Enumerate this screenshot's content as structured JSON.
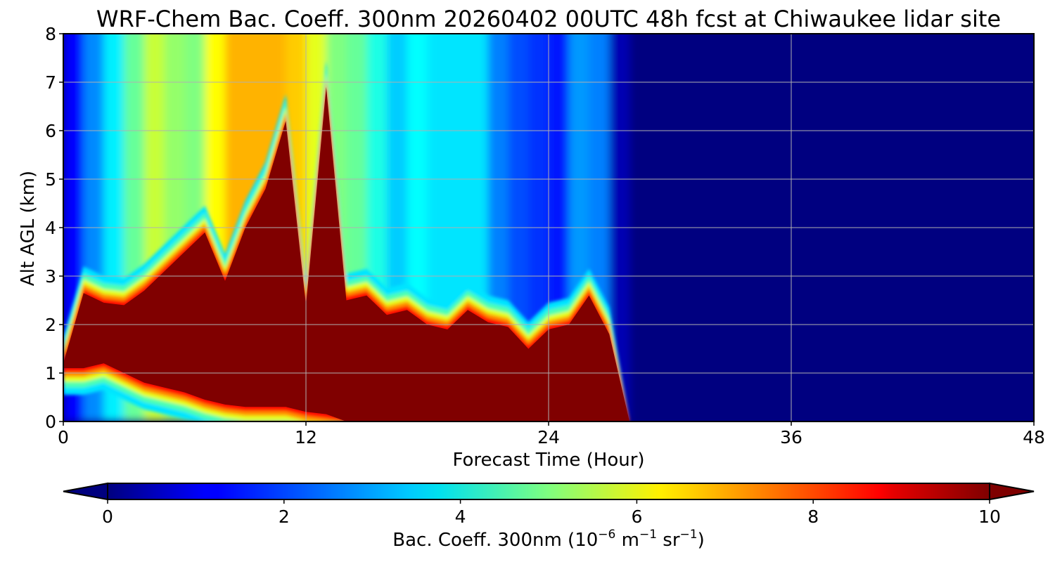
{
  "chart_data": {
    "type": "heatmap",
    "title": "WRF-Chem Bac. Coeff. 300nm  20260402 00UTC 48h fcst at Chiwaukee lidar site",
    "xlabel": "Forecast Time (Hour)",
    "ylabel": "Alt AGL (km)",
    "xlim": [
      0,
      48
    ],
    "ylim": [
      0,
      8
    ],
    "x_ticks": [
      "0",
      "12",
      "24",
      "36",
      "48"
    ],
    "y_ticks": [
      "0",
      "1",
      "2",
      "3",
      "4",
      "5",
      "6",
      "7",
      "8"
    ],
    "grid": true,
    "colorscale": "jet",
    "colorbar": {
      "label_prefix": "Bac. Coeff. 300nm  (10",
      "label_exp1": "−6",
      "label_mid": " m",
      "label_exp2": "−1",
      "label_mid2": " sr",
      "label_exp3": "−1",
      "label_suffix": ")",
      "range": [
        0,
        10
      ],
      "ticks": [
        "0",
        "2",
        "4",
        "6",
        "8",
        "10"
      ],
      "extend": "both",
      "orientation": "horizontal"
    },
    "times": [
      0,
      1,
      2,
      3,
      4,
      5,
      6,
      7,
      8,
      9,
      10,
      11,
      12,
      13,
      14,
      15,
      16,
      17,
      18,
      19,
      20,
      21,
      22,
      23,
      24,
      25,
      26,
      27,
      28,
      30,
      32,
      36,
      40,
      44,
      48
    ],
    "plume": {
      "top_km": [
        1.2,
        2.65,
        2.45,
        2.4,
        2.7,
        3.1,
        3.5,
        3.9,
        2.9,
        4.0,
        4.8,
        6.2,
        2.4,
        6.9,
        2.5,
        2.6,
        2.2,
        2.3,
        2.0,
        1.9,
        2.3,
        2.05,
        1.95,
        1.5,
        1.9,
        2.0,
        2.6,
        1.8,
        0.0,
        0.0,
        0.0,
        0.0,
        0.0,
        0.0,
        0.0
      ],
      "bottom_km": [
        1.1,
        1.1,
        1.2,
        1.0,
        0.8,
        0.7,
        0.6,
        0.45,
        0.35,
        0.3,
        0.3,
        0.3,
        0.2,
        0.15,
        0.0,
        0.0,
        0.0,
        0.0,
        0.0,
        0.0,
        0.0,
        0.0,
        0.0,
        0.0,
        0.0,
        0.0,
        0.0,
        0.0,
        0.0,
        0.0,
        0.0,
        0.0,
        0.0,
        0.0,
        0.0
      ],
      "core_value": 10.0
    },
    "upper_background": [
      0.5,
      2.0,
      3.2,
      4.0,
      5.5,
      5.9,
      4.5,
      5.5,
      7.0,
      7.0,
      7.0,
      7.0,
      6.5,
      5.5,
      4.5,
      5.0,
      3.0,
      3.5,
      4.0,
      3.0,
      4.0,
      3.0,
      2.0,
      2.0,
      1.5,
      1.5,
      4.0,
      1.0,
      0.0,
      0.0,
      0.0,
      0.0,
      0.0,
      0.0,
      0.0
    ],
    "background_value": 0.0
  }
}
